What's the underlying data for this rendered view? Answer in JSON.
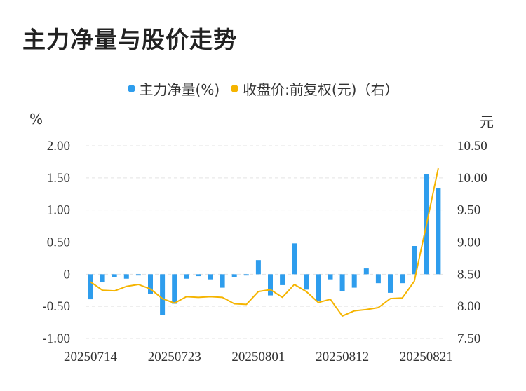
{
  "title": "主力净量与股价走势",
  "chart_data": {
    "type": "bar",
    "left_unit": "%",
    "right_unit": "元",
    "legend": [
      {
        "label": "主力净量(%)",
        "color": "#2e9ded"
      },
      {
        "label": "收盘价:前复权(元)（右）",
        "color": "#f5b400"
      }
    ],
    "x_tick_labels": [
      "20250714",
      "20250723",
      "20250801",
      "20250812",
      "20250821"
    ],
    "x_tick_indices": [
      0,
      7,
      14,
      21,
      28
    ],
    "left_axis": {
      "ylim": [
        -1.0,
        2.0
      ],
      "ticks": [
        "2.00",
        "1.50",
        "1.00",
        "0.50",
        "0",
        "-0.50",
        "-1.00"
      ],
      "tick_values": [
        2.0,
        1.5,
        1.0,
        0.5,
        0,
        -0.5,
        -1.0
      ]
    },
    "right_axis": {
      "ylim": [
        7.5,
        10.5
      ],
      "ticks": [
        "10.50",
        "10.00",
        "9.50",
        "9.00",
        "8.50",
        "8.00",
        "7.50"
      ],
      "tick_values": [
        10.5,
        10.0,
        9.5,
        9.0,
        8.5,
        8.0,
        7.5
      ]
    },
    "grid": true,
    "series": [
      {
        "name": "主力净量(%)",
        "type": "bar",
        "axis": "left",
        "values": [
          -0.39,
          -0.12,
          -0.04,
          -0.07,
          -0.02,
          -0.31,
          -0.63,
          -0.46,
          -0.07,
          -0.03,
          -0.08,
          -0.21,
          -0.05,
          -0.02,
          0.22,
          -0.33,
          -0.17,
          0.48,
          -0.24,
          -0.42,
          -0.08,
          -0.26,
          -0.21,
          0.09,
          -0.14,
          -0.29,
          -0.14,
          0.44,
          1.56,
          1.34
        ]
      },
      {
        "name": "收盘价:前复权(元)（右）",
        "type": "line",
        "axis": "right",
        "values": [
          8.38,
          8.25,
          8.24,
          8.31,
          8.34,
          8.27,
          8.12,
          8.05,
          8.15,
          8.14,
          8.15,
          8.14,
          8.04,
          8.03,
          8.23,
          8.26,
          8.14,
          8.34,
          8.23,
          8.06,
          8.11,
          7.85,
          7.93,
          7.95,
          7.98,
          8.12,
          8.13,
          8.39,
          9.26,
          10.15
        ]
      }
    ]
  }
}
